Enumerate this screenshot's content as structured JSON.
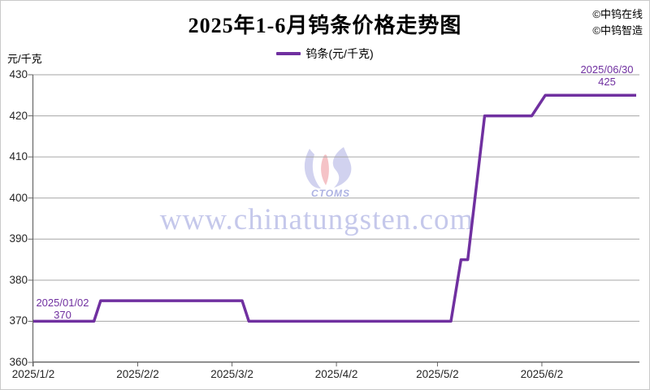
{
  "header": {
    "title": "2025年1-6月钨条价格走势图",
    "credits": [
      "©中钨在线",
      "©中钨智造"
    ]
  },
  "legend": {
    "label": "钨条(元/千克)"
  },
  "y_axis_unit": "元/千克",
  "watermark": {
    "text": "www.chinatungsten.com",
    "logo_text": "CTOMS"
  },
  "annotations": {
    "start": {
      "date": "2025/01/02",
      "value": "370"
    },
    "end": {
      "date": "2025/06/30",
      "value": "425"
    }
  },
  "colors": {
    "line": "#7030A0",
    "annotation_text": "#7030A0",
    "grid": "#A6A6A6",
    "axis": "#666666",
    "watermark_text": "#9FA5DE",
    "logo_lavender": "#C9CAEC",
    "logo_pink": "#F3B9BD"
  },
  "chart_data": {
    "type": "line",
    "title": "2025年1-6月钨条价格走势图",
    "ylabel": "元/千克",
    "ylim": [
      360,
      430
    ],
    "y_ticks": [
      360,
      370,
      380,
      390,
      400,
      410,
      420,
      430
    ],
    "x_start": "2025/01/02",
    "x_end": "2025/06/30",
    "x_tick_labels": [
      "2025/1/2",
      "2025/2/2",
      "2025/3/2",
      "2025/4/2",
      "2025/5/2",
      "2025/6/2"
    ],
    "grid": "horizontal gridlines on",
    "legend_position": "top center",
    "series": [
      {
        "name": "钨条(元/千克)",
        "points": [
          [
            "2025/01/02",
            370
          ],
          [
            "2025/01/20",
            370
          ],
          [
            "2025/01/22",
            375
          ],
          [
            "2025/03/05",
            375
          ],
          [
            "2025/03/07",
            370
          ],
          [
            "2025/05/06",
            370
          ],
          [
            "2025/05/09",
            385
          ],
          [
            "2025/05/11",
            385
          ],
          [
            "2025/05/16",
            420
          ],
          [
            "2025/05/30",
            420
          ],
          [
            "2025/06/03",
            425
          ],
          [
            "2025/06/30",
            425
          ]
        ]
      }
    ]
  }
}
